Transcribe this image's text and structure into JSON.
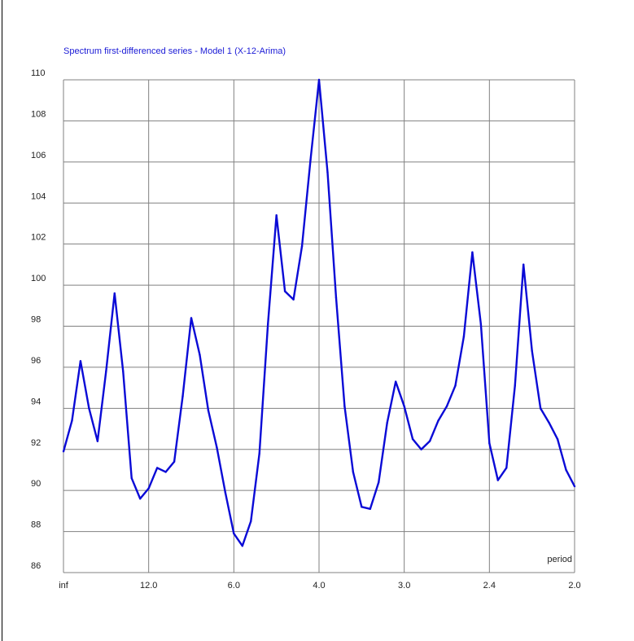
{
  "chart_data": {
    "type": "line",
    "title": "Spectrum first-differenced series - Model 1 (X-12-Arima)",
    "xlabel": "period",
    "ylabel": "",
    "x_tick_labels": [
      "inf",
      "12.0",
      "6.0",
      "4.0",
      "3.0",
      "2.4",
      "2.0"
    ],
    "y_ticks": [
      86,
      88,
      90,
      92,
      94,
      96,
      98,
      100,
      102,
      104,
      106,
      108,
      110
    ],
    "ylim": [
      86,
      110
    ],
    "xlim": [
      0,
      60
    ],
    "grid": true,
    "series": [
      {
        "x": [
          0,
          1,
          2,
          3,
          4,
          5,
          6,
          7,
          8,
          9,
          10,
          11,
          12,
          13,
          14,
          15,
          16,
          17,
          18,
          19,
          20,
          21,
          22,
          23,
          24,
          25,
          26,
          27,
          28,
          29,
          30,
          31,
          32,
          33,
          34,
          35,
          36,
          37,
          38,
          39,
          40,
          41,
          42,
          43,
          44,
          45,
          46,
          47,
          48,
          49,
          50,
          51,
          52,
          53,
          54,
          55,
          56,
          57,
          58,
          59,
          60
        ],
        "values": [
          91.9,
          93.4,
          96.3,
          94.0,
          92.4,
          95.8,
          99.6,
          95.8,
          90.6,
          89.6,
          90.1,
          91.1,
          90.9,
          91.4,
          94.6,
          98.4,
          96.6,
          93.9,
          92.1,
          89.9,
          87.9,
          87.3,
          88.5,
          91.8,
          98.1,
          103.4,
          99.7,
          99.3,
          101.9,
          106.1,
          110.0,
          105.5,
          99.4,
          94.1,
          90.9,
          89.2,
          89.1,
          90.4,
          93.3,
          95.3,
          94.1,
          92.5,
          92.0,
          92.4,
          93.4,
          94.1,
          95.1,
          97.5,
          101.6,
          98.1,
          92.3,
          90.5,
          91.1,
          95.1,
          101.0,
          96.8,
          94.0,
          93.3,
          92.5,
          91.0,
          90.2
        ]
      }
    ]
  },
  "colors": {
    "line": "#0a0ad6",
    "grid": "#808080",
    "title": "#1a1ad6",
    "frame": "#000000"
  }
}
